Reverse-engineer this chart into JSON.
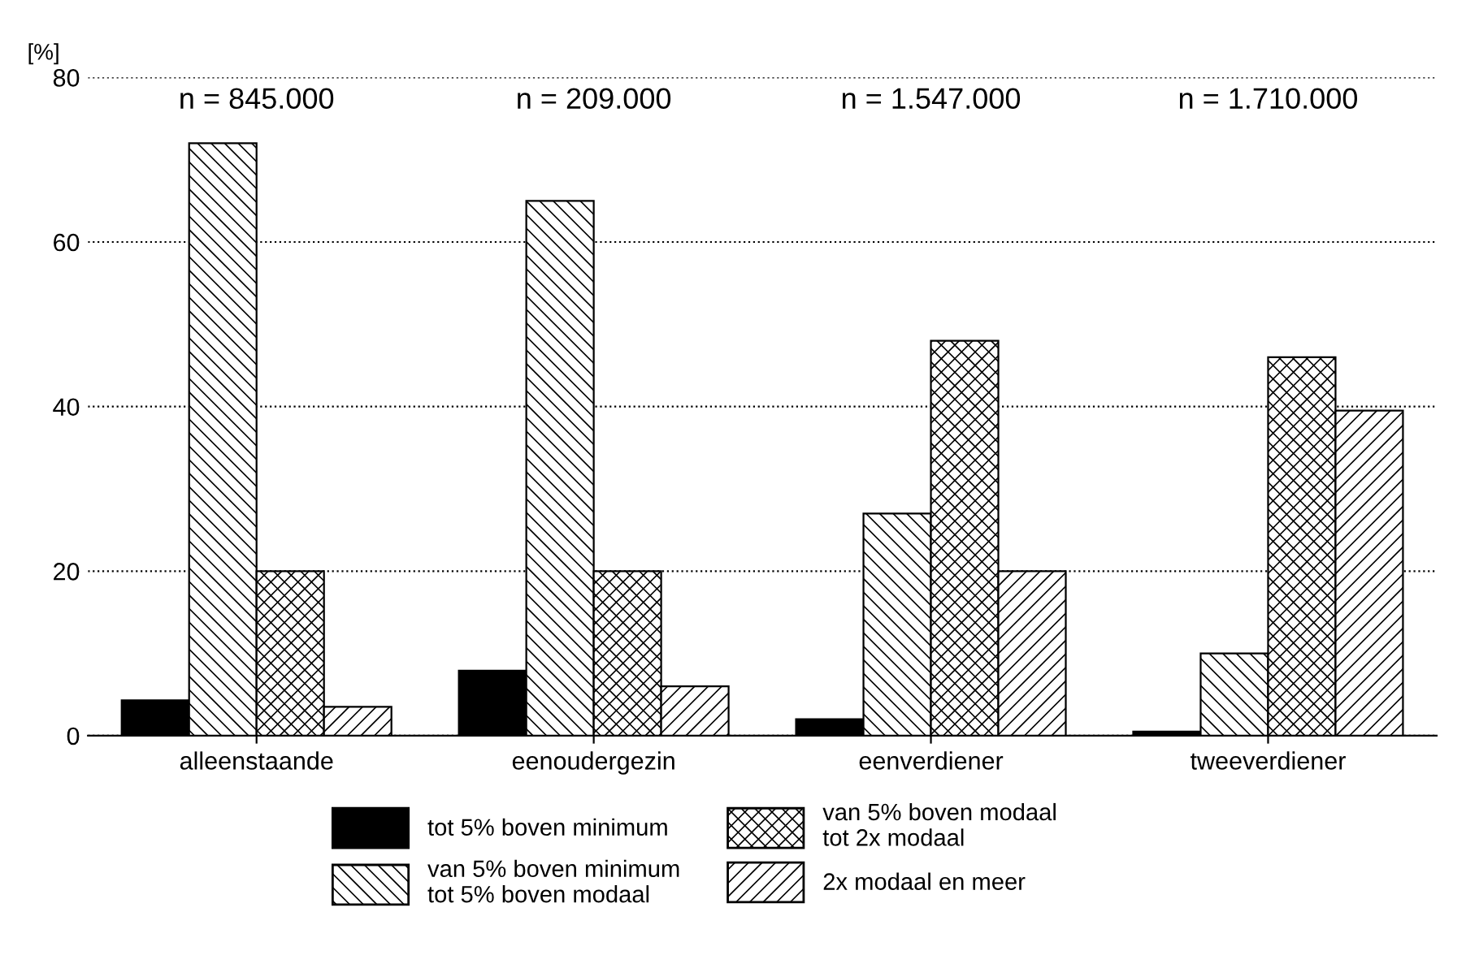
{
  "chart_data": {
    "type": "bar",
    "ylabel": "[%]",
    "categories": [
      "alleenstaande",
      "eenoudergezin",
      "eenverdiener",
      "tweeverdiener"
    ],
    "series": [
      {
        "name": "tot 5% boven minimum",
        "color": "#000000",
        "values": [
          4.3,
          7.9,
          2,
          0.5
        ]
      },
      {
        "name": "van 5% boven minimum\ntot 5% boven modaal",
        "color": "#000000",
        "values": [
          72,
          65,
          27,
          10
        ]
      },
      {
        "name": "van 5% boven modaal\ntot 2x modaal",
        "color": "#000000",
        "values": [
          20,
          20,
          48,
          46
        ]
      },
      {
        "name": "2x modaal en meer",
        "color": "#000000",
        "values": [
          3.5,
          6,
          20,
          39.5
        ]
      }
    ],
    "ylim": [
      0,
      80
    ],
    "yticks": [
      0,
      20,
      40,
      60,
      80
    ],
    "grid": "y",
    "legend": "bottom",
    "annotations": [
      "n = 845.000",
      "n = 209.000",
      "n = 1.547.000",
      "n = 1.710.000"
    ]
  }
}
